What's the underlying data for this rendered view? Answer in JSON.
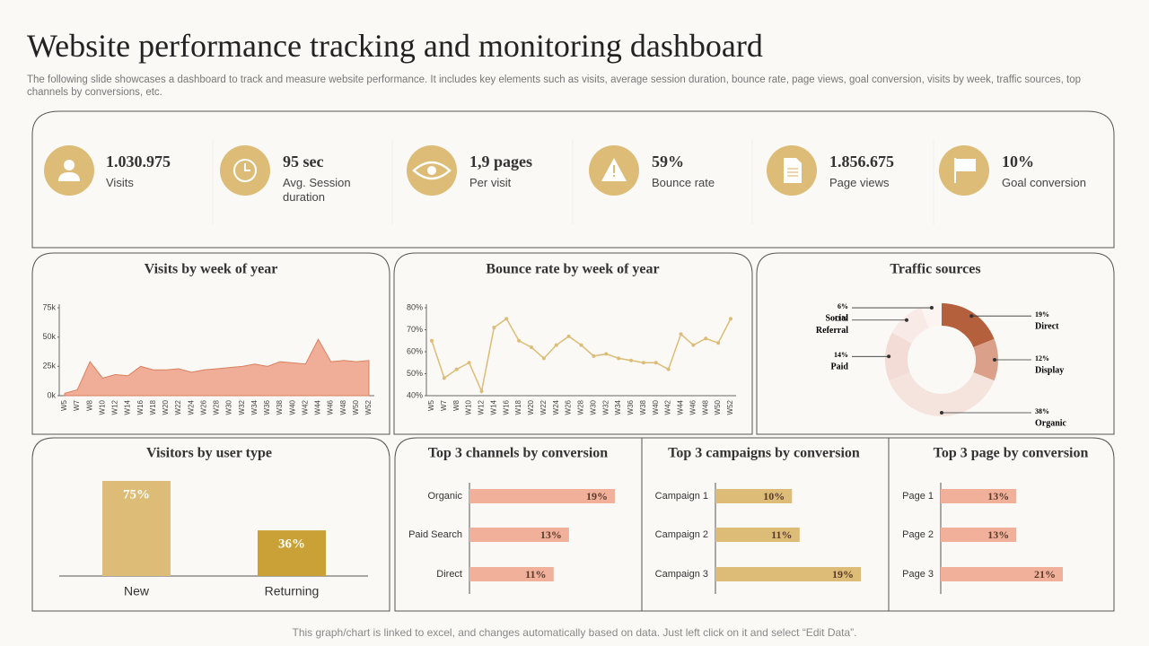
{
  "header": {
    "title": "Website performance tracking and monitoring dashboard",
    "subtitle": "The following slide showcases a dashboard to track and measure website performance. It includes key elements such as visits, average session duration, bounce rate, page views, goal conversion, visits by week, traffic sources, top channels by conversions, etc."
  },
  "kpis": [
    {
      "value": "1.030.975",
      "label": "Visits"
    },
    {
      "value": "95 sec",
      "label": "Avg. Session duration"
    },
    {
      "value": "1,9 pages",
      "label": "Per visit"
    },
    {
      "value": "59%",
      "label": "Bounce rate"
    },
    {
      "value": "1.856.675",
      "label": "Page views"
    },
    {
      "value": "10%",
      "label": "Goal conversion"
    }
  ],
  "chart_data": [
    {
      "type": "area",
      "title": "Visits by week of year",
      "categories": [
        "W5",
        "W7",
        "W8",
        "W10",
        "W12",
        "W14",
        "W16",
        "W18",
        "W20",
        "W22",
        "W24",
        "W26",
        "W28",
        "W30",
        "W32",
        "W34",
        "W36",
        "W38",
        "W40",
        "W42",
        "W44",
        "W46",
        "W48",
        "W50",
        "W52"
      ],
      "values": [
        2000,
        5000,
        29000,
        15000,
        18000,
        17000,
        25000,
        22000,
        22000,
        23000,
        20000,
        22000,
        23000,
        24000,
        25000,
        27000,
        25000,
        29000,
        28000,
        27000,
        48000,
        29000,
        30000,
        29000,
        30000
      ],
      "color": "#f0ae98",
      "ylim": [
        0,
        75000
      ],
      "yticks": [
        {
          "value": 0,
          "label": "0k"
        },
        {
          "value": 25000,
          "label": "25k"
        },
        {
          "value": 50000,
          "label": "50k"
        },
        {
          "value": 75000,
          "label": "75k"
        }
      ]
    },
    {
      "type": "line",
      "title": "Bounce rate by week of year",
      "categories": [
        "W5",
        "W7",
        "W8",
        "W10",
        "W12",
        "W14",
        "W16",
        "W18",
        "W20",
        "W22",
        "W24",
        "W26",
        "W28",
        "W30",
        "W32",
        "W34",
        "W36",
        "W38",
        "W40",
        "W42",
        "W44",
        "W46",
        "W48",
        "W50",
        "W52"
      ],
      "values": [
        65,
        48,
        52,
        55,
        42,
        71,
        75,
        65,
        62,
        57,
        63,
        67,
        63,
        58,
        59,
        57,
        56,
        55,
        55,
        52,
        68,
        63,
        66,
        64,
        75
      ],
      "color": "#dcbc76",
      "ylim": [
        40,
        80
      ],
      "yticks": [
        {
          "value": 40,
          "label": "40%"
        },
        {
          "value": 50,
          "label": "50%"
        },
        {
          "value": 60,
          "label": "60%"
        },
        {
          "value": 70,
          "label": "70%"
        },
        {
          "value": 80,
          "label": "80%"
        }
      ]
    },
    {
      "type": "pie",
      "title": "Traffic sources",
      "categories": [
        "Direct",
        "Display",
        "Organic",
        "Paid",
        "Referral",
        "Social"
      ],
      "values": [
        19,
        12,
        38,
        14,
        11,
        6
      ],
      "value_labels": [
        "19%",
        "12%",
        "38%",
        "14%",
        "11%",
        "6%"
      ],
      "colors": [
        "#b5603c",
        "#dba08a",
        "#f5e3dd",
        "#f3dcd6",
        "#f8ebe7",
        "#fcf4f1"
      ]
    },
    {
      "type": "bar",
      "title": "Visitors by user type",
      "categories": [
        "New",
        "Returning"
      ],
      "values": [
        75,
        36
      ],
      "value_labels": [
        "75%",
        "36%"
      ],
      "colors": [
        "#dcbc76",
        "#c9a136"
      ]
    },
    {
      "type": "hbar",
      "title": "Top 3 channels by conversion",
      "categories": [
        "Organic",
        "Paid Search",
        "Direct"
      ],
      "values": [
        19,
        13,
        11
      ],
      "value_labels": [
        "19%",
        "13%",
        "11%"
      ],
      "color": "#f0b09a"
    },
    {
      "type": "hbar",
      "title": "Top 3 campaigns by conversion",
      "categories": [
        "Campaign 1",
        "Campaign 2",
        "Campaign 3"
      ],
      "values": [
        10,
        11,
        19
      ],
      "value_labels": [
        "10%",
        "11%",
        "19%"
      ],
      "color": "#dcbc76"
    },
    {
      "type": "hbar",
      "title": "Top 3 page by conversion",
      "categories": [
        "Page 1",
        "Page 2",
        "Page 3"
      ],
      "values": [
        13,
        13,
        21
      ],
      "value_labels": [
        "13%",
        "13%",
        "21%"
      ],
      "color": "#f0b09a"
    }
  ],
  "footer": "This graph/chart is linked to excel,  and changes automatically based on data. Just left click on it and select “Edit Data”."
}
